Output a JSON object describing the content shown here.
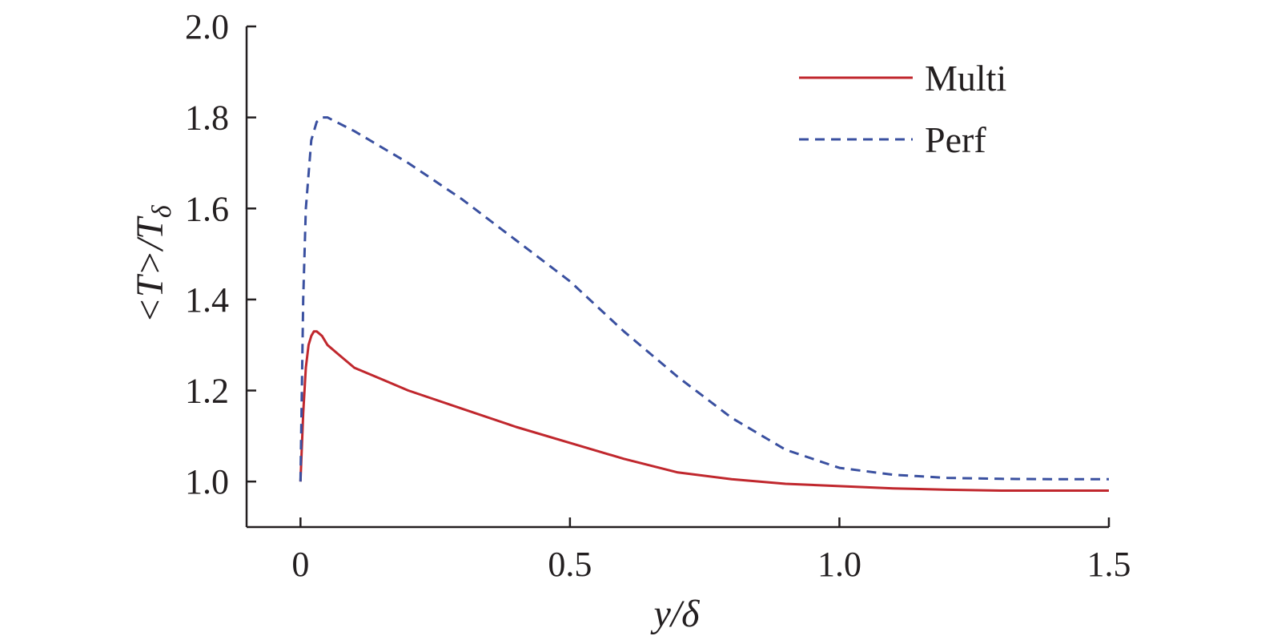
{
  "chart_data": {
    "type": "line",
    "xlabel": "y/δ",
    "ylabel": "<T>/Tδ",
    "xlim": [
      -0.1,
      1.5
    ],
    "ylim": [
      0.9,
      2.0
    ],
    "xticks": [
      0,
      0.5,
      1.0,
      1.5
    ],
    "xtick_labels": [
      "0",
      "0.5",
      "1.0",
      "1.5"
    ],
    "yticks": [
      1.0,
      1.2,
      1.4,
      1.6,
      1.8,
      2.0
    ],
    "ytick_labels": [
      "1.0",
      "1.2",
      "1.4",
      "1.6",
      "1.8",
      "2.0"
    ],
    "grid": false,
    "legend_position": "top-right",
    "series": [
      {
        "name": "Multi",
        "color": "#c0272d",
        "dash": "solid",
        "x": [
          0,
          0.005,
          0.01,
          0.015,
          0.02,
          0.025,
          0.03,
          0.04,
          0.05,
          0.07,
          0.1,
          0.15,
          0.2,
          0.3,
          0.4,
          0.5,
          0.6,
          0.7,
          0.8,
          0.9,
          1.0,
          1.1,
          1.2,
          1.3,
          1.4,
          1.5
        ],
        "y": [
          1.0,
          1.15,
          1.25,
          1.3,
          1.32,
          1.33,
          1.33,
          1.32,
          1.3,
          1.28,
          1.25,
          1.225,
          1.2,
          1.16,
          1.12,
          1.085,
          1.05,
          1.02,
          1.005,
          0.995,
          0.99,
          0.985,
          0.982,
          0.98,
          0.98,
          0.98
        ]
      },
      {
        "name": "Perf",
        "color": "#3a50a0",
        "dash": "dashed",
        "x": [
          0,
          0.005,
          0.01,
          0.02,
          0.03,
          0.04,
          0.05,
          0.1,
          0.2,
          0.3,
          0.4,
          0.5,
          0.6,
          0.7,
          0.8,
          0.9,
          1.0,
          1.1,
          1.2,
          1.3,
          1.4,
          1.5
        ],
        "y": [
          1.0,
          1.4,
          1.6,
          1.75,
          1.79,
          1.8,
          1.8,
          1.77,
          1.7,
          1.62,
          1.53,
          1.44,
          1.33,
          1.23,
          1.14,
          1.07,
          1.03,
          1.015,
          1.008,
          1.006,
          1.005,
          1.005
        ]
      }
    ]
  }
}
